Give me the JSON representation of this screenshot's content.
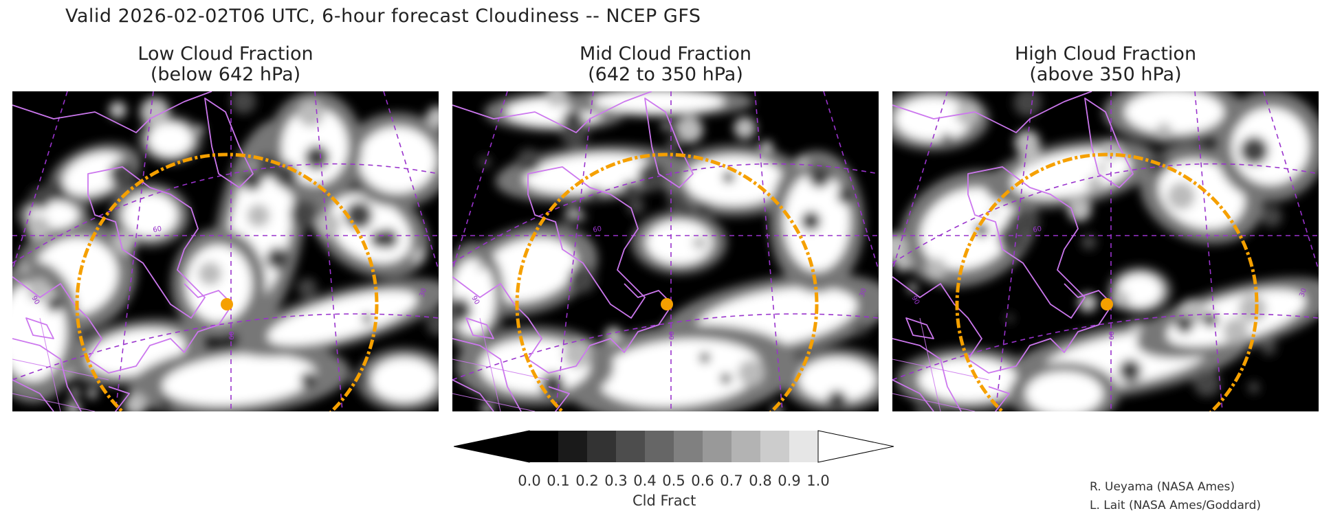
{
  "title": "Valid 2026-02-02T06 UTC, 6-hour forecast Cloudiness -- NCEP GFS",
  "panels": [
    {
      "title_line1": "Low Cloud Fraction",
      "title_line2": "(below 642 hPa)",
      "variant": 0
    },
    {
      "title_line1": "Mid Cloud Fraction",
      "title_line2": "(642 to 350 hPa)",
      "variant": 1
    },
    {
      "title_line1": "High Cloud Fraction",
      "title_line2": "(above 350 hPa)",
      "variant": 2
    }
  ],
  "map_labels": {
    "lat_label": "60",
    "lon_label_a": "60",
    "lon_label_b": "30",
    "lon_label_c": "90"
  },
  "colorbar": {
    "ticks": [
      "0.0",
      "0.1",
      "0.2",
      "0.3",
      "0.4",
      "0.5",
      "0.6",
      "0.7",
      "0.8",
      "0.9",
      "1.0"
    ],
    "unit": "Cld Fract",
    "colors": [
      "#000000",
      "#1a1a1a",
      "#333333",
      "#4d4d4d",
      "#666666",
      "#808080",
      "#999999",
      "#b3b3b3",
      "#cccccc",
      "#e6e6e6",
      "#ffffff"
    ]
  },
  "credits": {
    "line1": "R. Ueyama (NASA Ames)",
    "line2": "L. Lait (NASA Ames/Goddard)"
  },
  "colors": {
    "range_ring": "#f5a000",
    "coastline": "#cc77ee",
    "grid": "#9933cc",
    "center_point": "#f5a000"
  }
}
